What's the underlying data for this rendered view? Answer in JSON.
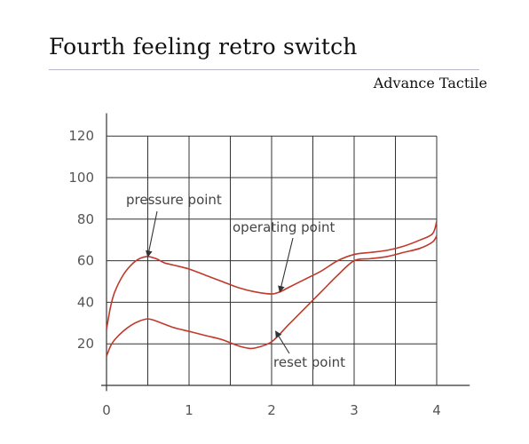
{
  "page": {
    "title": "Fourth feeling retro switch",
    "subtitle": "Advance Tactile"
  },
  "colors": {
    "curve": "#c0392b",
    "grid": "#333333",
    "annotation_arrow": "#333333"
  },
  "chart_data": {
    "type": "line",
    "title": "Fourth feeling retro switch",
    "subtitle": "Advance Tactile",
    "xlabel": "",
    "ylabel": "",
    "xlim": [
      0,
      4.4
    ],
    "ylim": [
      -1,
      131
    ],
    "x_ticks": [
      0,
      1,
      2,
      3,
      4
    ],
    "y_ticks": [
      20,
      40,
      60,
      80,
      100,
      120
    ],
    "grid": true,
    "x_gridlines": [
      0,
      0.5,
      1,
      1.5,
      2,
      2.5,
      3,
      3.5,
      4
    ],
    "y_gridlines": [
      0,
      20,
      40,
      60,
      80,
      100,
      120
    ],
    "series": [
      {
        "x": [
          0,
          0.05,
          0.1,
          0.2,
          0.3,
          0.4,
          0.5,
          0.6,
          0.7,
          0.8,
          1.0,
          1.2,
          1.4,
          1.6,
          1.8,
          2.0,
          2.1,
          2.2,
          2.4,
          2.6,
          2.8,
          3.0,
          3.2,
          3.4,
          3.6,
          3.8,
          3.95,
          4.0
        ],
        "y": [
          27,
          38,
          45,
          53,
          58,
          61,
          62,
          61,
          59,
          58,
          56,
          53,
          50,
          47,
          45,
          44,
          45,
          47,
          51,
          55,
          60,
          63,
          64,
          65,
          67,
          70,
          73,
          79
        ]
      },
      {
        "x": [
          0,
          0.05,
          0.1,
          0.2,
          0.3,
          0.4,
          0.5,
          0.6,
          0.8,
          1.0,
          1.2,
          1.4,
          1.6,
          1.7,
          1.8,
          2.0,
          2.2,
          2.4,
          2.6,
          2.8,
          3.0,
          3.2,
          3.4,
          3.6,
          3.8,
          3.95,
          4.0
        ],
        "y": [
          14,
          19,
          22,
          26,
          29,
          31,
          32,
          31,
          28,
          26,
          24,
          22,
          19,
          18,
          18,
          21,
          29,
          37,
          45,
          53,
          60,
          61,
          62,
          64,
          66,
          69,
          72
        ]
      }
    ],
    "annotations": [
      {
        "text": "pressure point",
        "target": [
          0.5,
          62
        ]
      },
      {
        "text": "operating point",
        "target": [
          2.1,
          45
        ]
      },
      {
        "text": "reset point",
        "target": [
          2.05,
          26
        ]
      }
    ]
  }
}
